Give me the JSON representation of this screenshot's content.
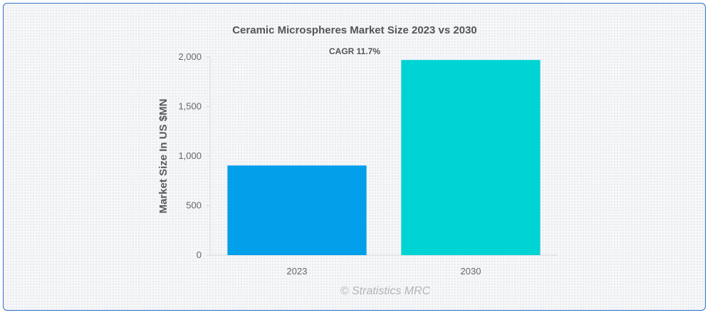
{
  "chart_data": {
    "type": "bar",
    "title": "Ceramic Microspheres Market Size 2023 vs 2030",
    "annotation": "CAGR 11.7%",
    "xlabel": "",
    "ylabel": "Market Size In US $MN",
    "categories": [
      "2023",
      "2030"
    ],
    "values": [
      905,
      1970
    ],
    "ylim": [
      0,
      2000
    ],
    "yticks": [
      0,
      500,
      1000,
      1500,
      2000
    ],
    "ytick_labels": [
      "0",
      "500",
      "1,000",
      "1,500",
      "2,000"
    ],
    "colors": [
      "#039fea",
      "#00d3d3"
    ],
    "grid": false,
    "legend": "none",
    "credit": "© Stratistics MRC"
  }
}
